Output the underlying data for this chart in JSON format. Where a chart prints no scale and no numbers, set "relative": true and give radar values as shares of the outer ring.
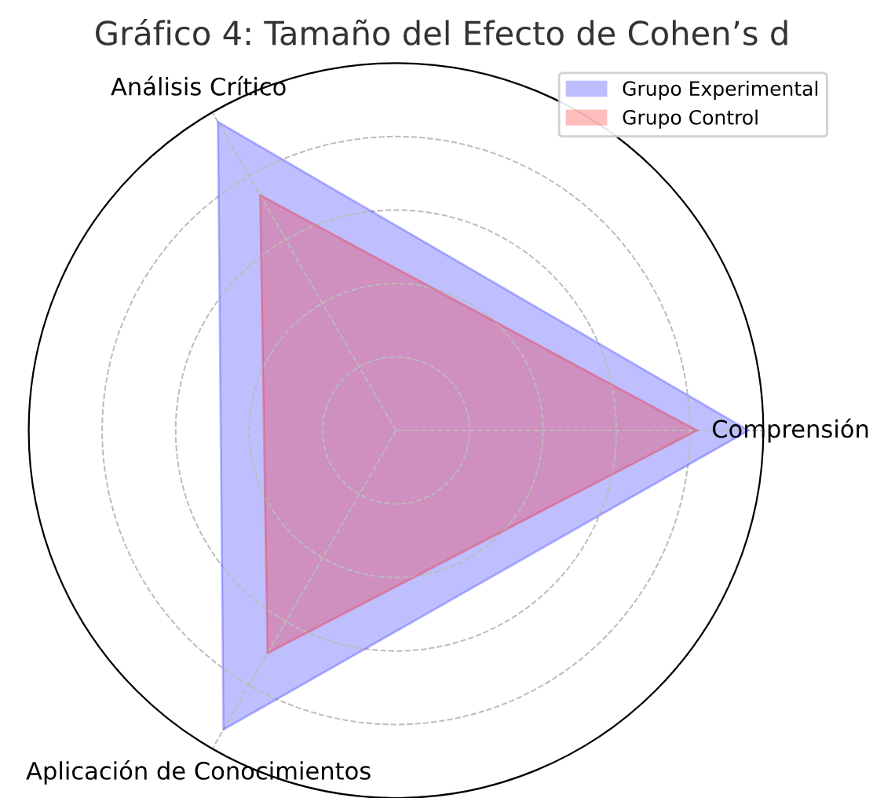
{
  "chart_data": {
    "type": "radar",
    "title": "Gráfico 4: Tamaño del Efecto de Cohen’s d",
    "categories": [
      "Comprensión",
      "Aplicación de Conocimientos",
      "Análisis Crítico"
    ],
    "relative": true,
    "grid": true,
    "legend": "top right",
    "series": [
      {
        "name": "Grupo Experimental",
        "color": "#0000ff",
        "values": [
          0.96,
          0.94,
          0.97
        ]
      },
      {
        "name": "Grupo Control",
        "color": "#ff0000",
        "values": [
          0.82,
          0.7,
          0.74
        ]
      }
    ]
  }
}
